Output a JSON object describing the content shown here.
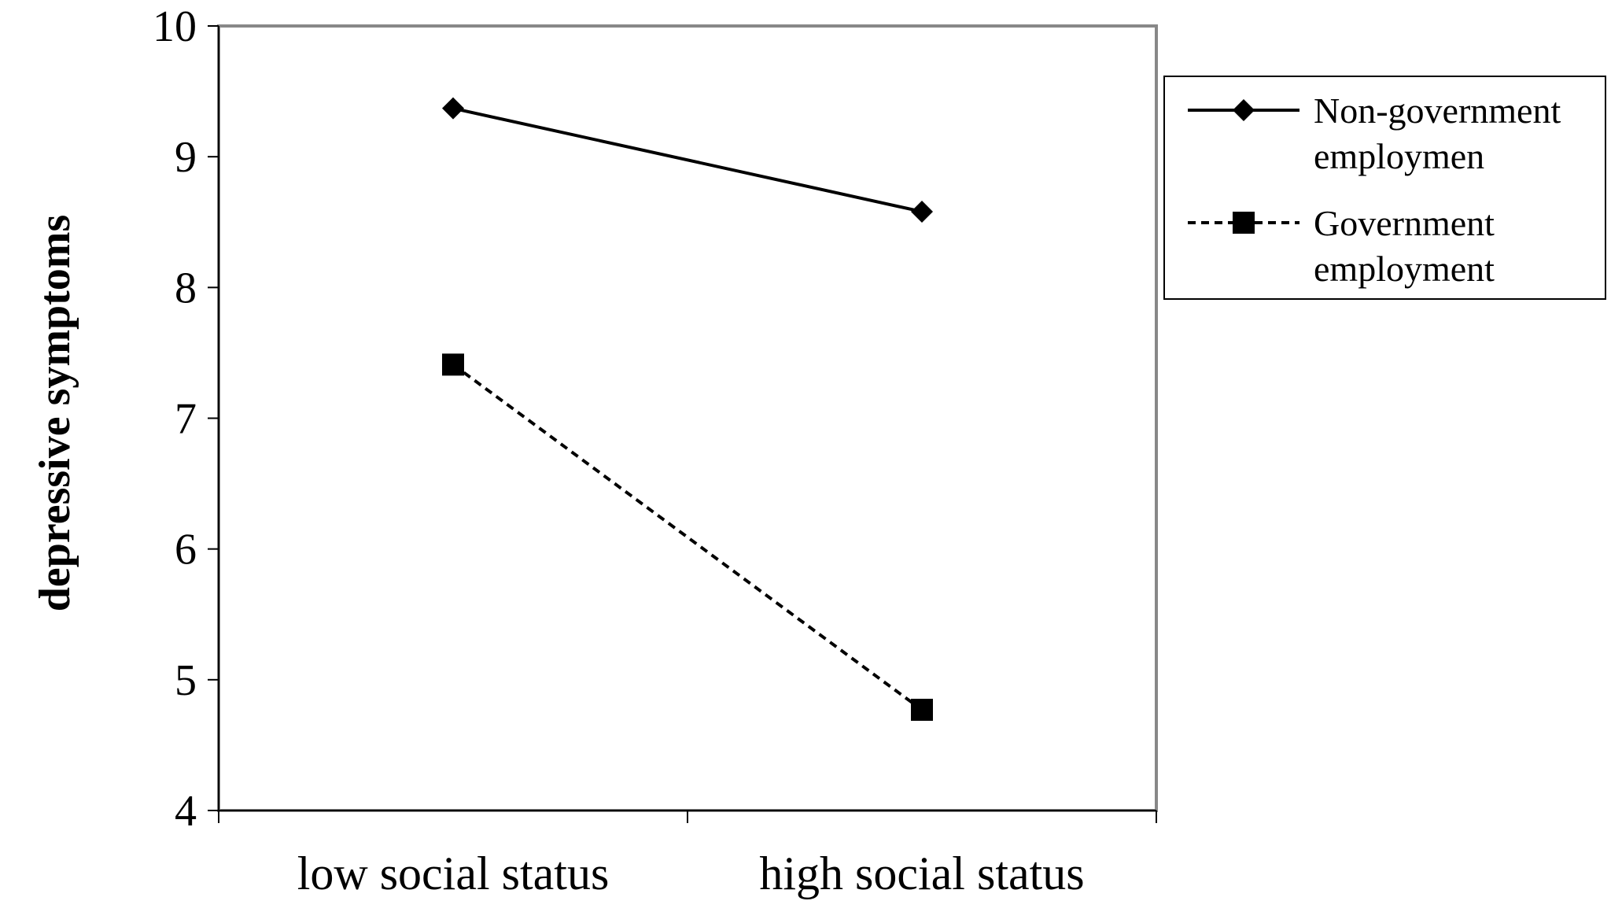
{
  "chart_data": {
    "type": "line",
    "categories": [
      "low social status",
      "high social status"
    ],
    "series": [
      {
        "name": "Non-government employmen",
        "name_lines": [
          "Non-government",
          "employmen"
        ],
        "values": [
          9.37,
          8.58
        ],
        "marker": "diamond",
        "line_style": "solid",
        "color": "#000000"
      },
      {
        "name": "Government employment",
        "name_lines": [
          "Government",
          "employment"
        ],
        "values": [
          7.41,
          4.77
        ],
        "marker": "square",
        "line_style": "dashed",
        "color": "#000000"
      }
    ],
    "title": "",
    "xlabel": "",
    "ylabel": "depressive symptoms",
    "ylim": [
      4,
      10
    ],
    "yticks": [
      "4",
      "5",
      "6",
      "7",
      "8",
      "9",
      "10"
    ],
    "grid": false,
    "legend_position": "right",
    "colors": {
      "plot_border": "#888888",
      "axis": "#000000",
      "background": "#ffffff"
    }
  }
}
